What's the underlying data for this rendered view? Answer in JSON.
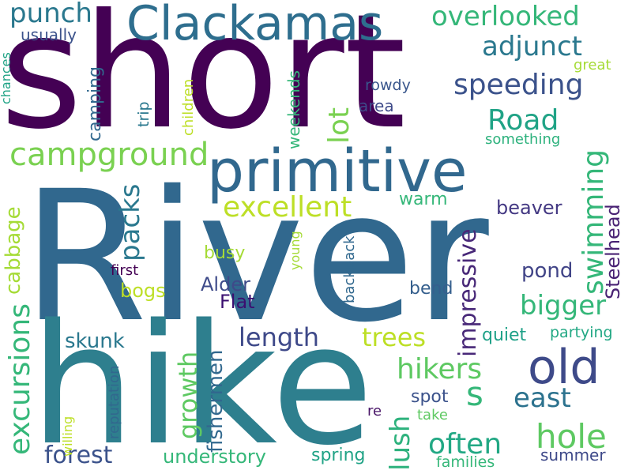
{
  "words": [
    {
      "text": "River",
      "color": "#31688e"
    },
    {
      "text": "short",
      "color": "#440154"
    },
    {
      "text": "hike",
      "color": "#2e7f8e"
    },
    {
      "text": "primitive",
      "color": "#31688e"
    },
    {
      "text": "Clackamas",
      "color": "#2e6e8e"
    },
    {
      "text": "old",
      "color": "#3e4a89"
    },
    {
      "text": "campground",
      "color": "#7ad151"
    },
    {
      "text": "excursions",
      "color": "#35b779"
    },
    {
      "text": "hole",
      "color": "#5ec962"
    },
    {
      "text": "swimming",
      "color": "#35b779"
    },
    {
      "text": "overlooked",
      "color": "#35b779"
    },
    {
      "text": "excellent",
      "color": "#bddf26"
    },
    {
      "text": "hikers",
      "color": "#5ec962"
    },
    {
      "text": "bigger",
      "color": "#35b779"
    },
    {
      "text": "speeding",
      "color": "#3b528b"
    },
    {
      "text": "adjunct",
      "color": "#2a788e"
    },
    {
      "text": "Road",
      "color": "#20a386"
    },
    {
      "text": "punch",
      "color": "#2a788e"
    },
    {
      "text": "packs",
      "color": "#2a788e"
    },
    {
      "text": "lot",
      "color": "#7ad151"
    },
    {
      "text": "often",
      "color": "#22a884"
    },
    {
      "text": "s",
      "color": "#35b779"
    },
    {
      "text": "east",
      "color": "#2c728e"
    },
    {
      "text": "forest",
      "color": "#3b528b"
    },
    {
      "text": "length",
      "color": "#3e4989"
    },
    {
      "text": "trees",
      "color": "#bddf26"
    },
    {
      "text": "lush",
      "color": "#2db27d"
    },
    {
      "text": "impressive",
      "color": "#482878"
    },
    {
      "text": "growth",
      "color": "#5ec962"
    },
    {
      "text": "understory",
      "color": "#35b779"
    },
    {
      "text": "cabbage",
      "color": "#a5db36"
    },
    {
      "text": "fishermen",
      "color": "#31688e"
    },
    {
      "text": "skunk",
      "color": "#2a788e"
    },
    {
      "text": "pond",
      "color": "#414487"
    },
    {
      "text": "Steelhead",
      "color": "#482173"
    },
    {
      "text": "beaver",
      "color": "#443983"
    },
    {
      "text": "warm",
      "color": "#35b779"
    },
    {
      "text": "busy",
      "color": "#a5db36"
    },
    {
      "text": "bogs",
      "color": "#bddf26"
    },
    {
      "text": "Alder",
      "color": "#3e4a89"
    },
    {
      "text": "Flat",
      "color": "#3b0f70"
    },
    {
      "text": "bend",
      "color": "#355f8d"
    },
    {
      "text": "quiet",
      "color": "#1fa188"
    },
    {
      "text": "partying",
      "color": "#22a884"
    },
    {
      "text": "spot",
      "color": "#3b528b"
    },
    {
      "text": "summer",
      "color": "#3e4989"
    },
    {
      "text": "spring",
      "color": "#20a386"
    },
    {
      "text": "families",
      "color": "#35b779"
    },
    {
      "text": "take",
      "color": "#5ec962"
    },
    {
      "text": "re",
      "color": "#481467"
    },
    {
      "text": "camping",
      "color": "#31688e"
    },
    {
      "text": "usually",
      "color": "#3b528b"
    },
    {
      "text": "area",
      "color": "#3e4a89"
    },
    {
      "text": "rowdy",
      "color": "#39568c"
    },
    {
      "text": "trip",
      "color": "#2a788e"
    },
    {
      "text": "great",
      "color": "#a5db36"
    },
    {
      "text": "children",
      "color": "#bddf26"
    },
    {
      "text": "weekends",
      "color": "#35b779"
    },
    {
      "text": "something",
      "color": "#2db27d"
    },
    {
      "text": "young",
      "color": "#a5db36"
    },
    {
      "text": "backpack",
      "color": "#31688e"
    },
    {
      "text": "first",
      "color": "#440154"
    },
    {
      "text": "chances",
      "color": "#20a386"
    },
    {
      "text": "willing",
      "color": "#bddf26"
    },
    {
      "text": "reputation",
      "color": "#31688e"
    }
  ]
}
